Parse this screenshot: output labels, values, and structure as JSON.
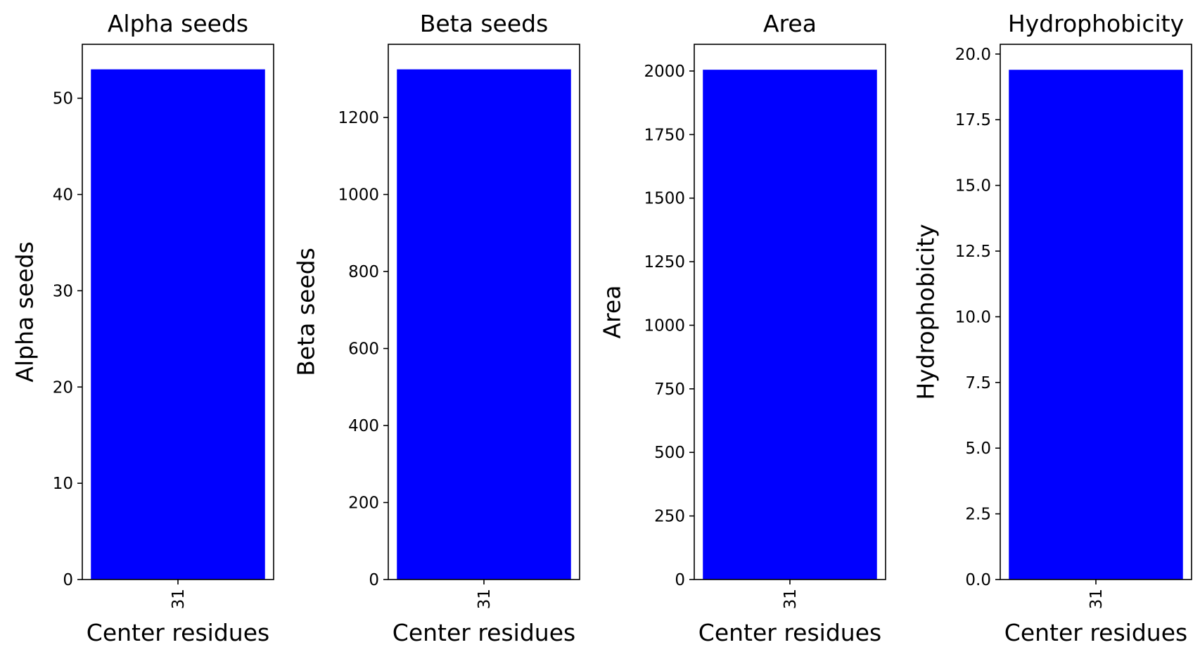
{
  "chart_data": [
    {
      "type": "bar",
      "title": "Alpha seeds",
      "xlabel": "Center residues",
      "ylabel": "Alpha seeds",
      "categories": [
        "31"
      ],
      "values": [
        53
      ],
      "ylim": [
        0,
        55.6
      ],
      "yticks": [
        0,
        10,
        20,
        30,
        40,
        50
      ],
      "ytick_labels": [
        "0",
        "10",
        "20",
        "30",
        "40",
        "50"
      ],
      "xtick_labels": [
        "31"
      ],
      "bar_color": "#0000ff",
      "grid": false
    },
    {
      "type": "bar",
      "title": "Beta seeds",
      "xlabel": "Center residues",
      "ylabel": "Beta seeds",
      "categories": [
        "31"
      ],
      "values": [
        1325
      ],
      "ylim": [
        0,
        1390
      ],
      "yticks": [
        0,
        200,
        400,
        600,
        800,
        1000,
        1200
      ],
      "ytick_labels": [
        "0",
        "200",
        "400",
        "600",
        "800",
        "1000",
        "1200"
      ],
      "xtick_labels": [
        "31"
      ],
      "bar_color": "#0000ff",
      "grid": false
    },
    {
      "type": "bar",
      "title": "Area",
      "xlabel": "Center residues",
      "ylabel": "Area",
      "categories": [
        "31"
      ],
      "values": [
        2005
      ],
      "ylim": [
        0,
        2105
      ],
      "yticks": [
        0,
        250,
        500,
        750,
        1000,
        1250,
        1500,
        1750,
        2000
      ],
      "ytick_labels": [
        "0",
        "250",
        "500",
        "750",
        "1000",
        "1250",
        "1500",
        "1750",
        "2000"
      ],
      "xtick_labels": [
        "31"
      ],
      "bar_color": "#0000ff",
      "grid": false
    },
    {
      "type": "bar",
      "title": "Hydrophobicity",
      "xlabel": "Center residues",
      "ylabel": "Hydrophobicity",
      "categories": [
        "31"
      ],
      "values": [
        19.4
      ],
      "ylim": [
        0,
        20.37
      ],
      "yticks": [
        0,
        2.5,
        5,
        7.5,
        10,
        12.5,
        15,
        17.5,
        20
      ],
      "ytick_labels": [
        "0.0",
        "2.5",
        "5.0",
        "7.5",
        "10.0",
        "12.5",
        "15.0",
        "17.5",
        "20.0"
      ],
      "xtick_labels": [
        "31"
      ],
      "bar_color": "#0000ff",
      "grid": false
    }
  ]
}
